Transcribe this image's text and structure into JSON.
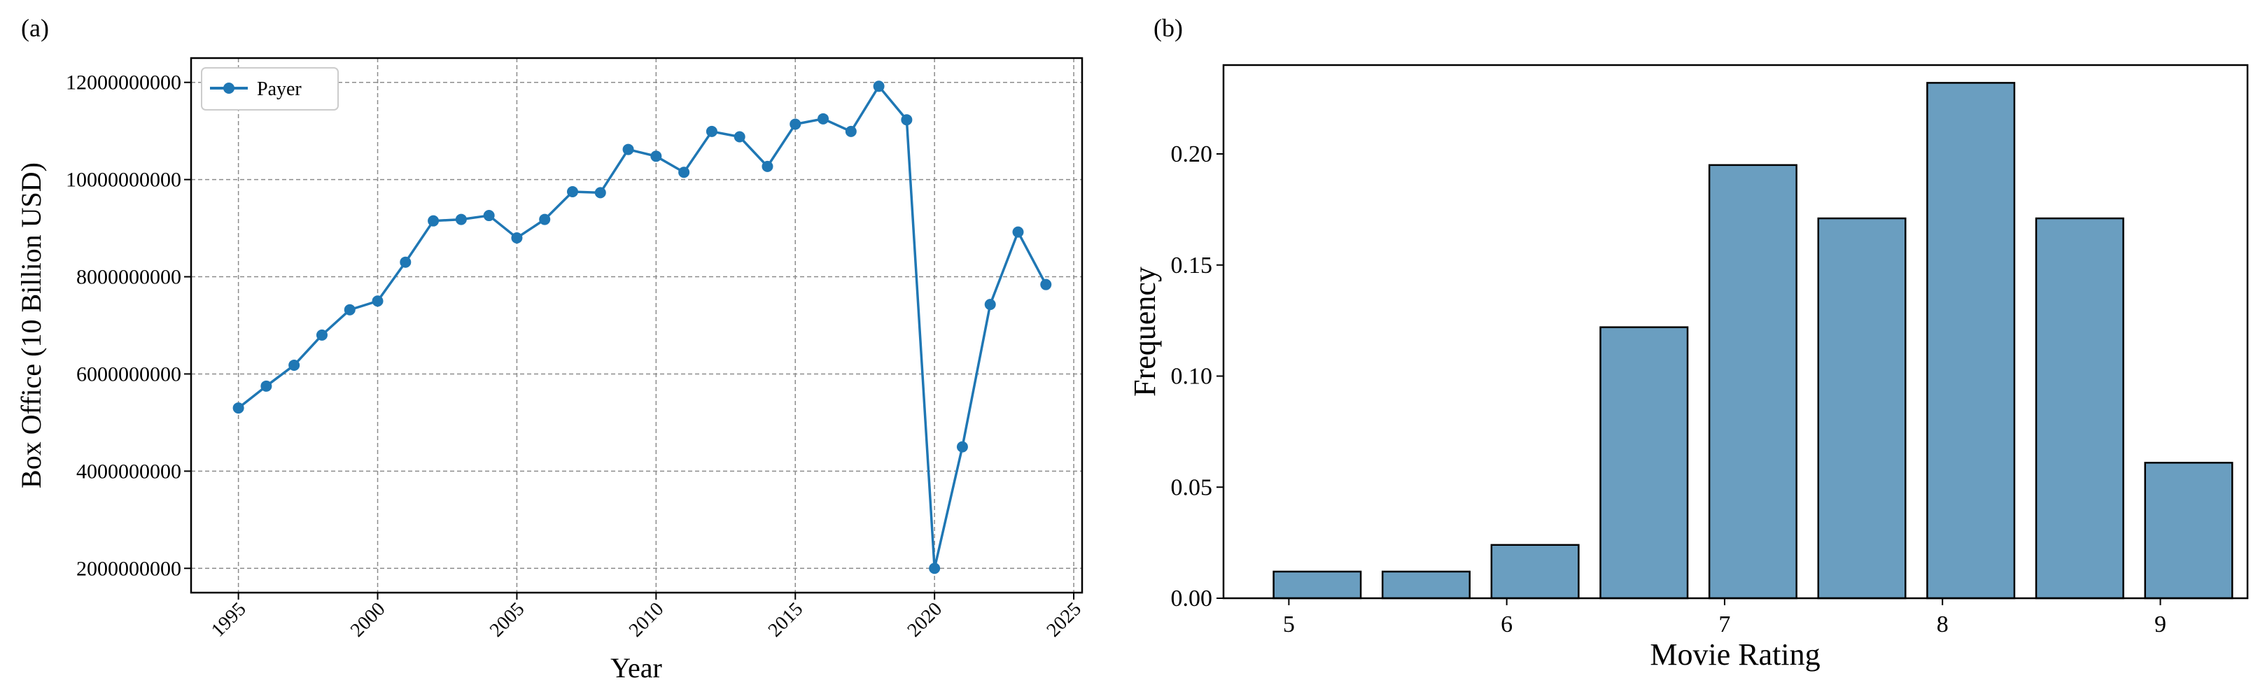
{
  "chart_data": [
    {
      "type": "line",
      "panel_label": "(a)",
      "xlabel": "Year",
      "ylabel": "Box Office (10 Billion USD)",
      "xlim": [
        1993.3,
        2025.3
      ],
      "ylim": [
        1500000000,
        12500000000
      ],
      "grid": true,
      "grid_style": "dashed",
      "legend_position": "upper-left",
      "x_ticks": [
        "1995",
        "2000",
        "2005",
        "2010",
        "2015",
        "2020",
        "2025"
      ],
      "y_ticks": [
        "2000000000",
        "4000000000",
        "6000000000",
        "8000000000",
        "10000000000",
        "12000000000"
      ],
      "x": [
        1995,
        1996,
        1997,
        1998,
        1999,
        2000,
        2001,
        2002,
        2003,
        2004,
        2005,
        2006,
        2007,
        2008,
        2009,
        2010,
        2011,
        2012,
        2013,
        2014,
        2015,
        2016,
        2017,
        2018,
        2019,
        2020,
        2021,
        2022,
        2023,
        2024
      ],
      "series": [
        {
          "name": "Payer",
          "color": "#1f77b4",
          "values": [
            5300000000,
            5750000000,
            6180000000,
            6800000000,
            7320000000,
            7500000000,
            8300000000,
            9150000000,
            9180000000,
            9260000000,
            8800000000,
            9180000000,
            9750000000,
            9730000000,
            10620000000,
            10480000000,
            10150000000,
            10990000000,
            10880000000,
            10270000000,
            11140000000,
            11250000000,
            10990000000,
            11920000000,
            11230000000,
            2000000000,
            4500000000,
            7430000000,
            8920000000,
            7840000000
          ]
        }
      ]
    },
    {
      "type": "bar",
      "panel_label": "(b)",
      "xlabel": "Movie Rating",
      "ylabel": "Frequency",
      "xlim": [
        4.7,
        9.4
      ],
      "ylim": [
        0,
        0.24
      ],
      "grid": false,
      "bar_color": "#6a9ec0",
      "x_ticks": [
        "5",
        "6",
        "7",
        "8",
        "9"
      ],
      "y_ticks": [
        "0.00",
        "0.05",
        "0.10",
        "0.15",
        "0.20"
      ],
      "bins": [
        [
          4.93,
          5.33
        ],
        [
          5.43,
          5.83
        ],
        [
          5.93,
          6.33
        ],
        [
          6.43,
          6.83
        ],
        [
          6.93,
          7.33
        ],
        [
          7.43,
          7.83
        ],
        [
          7.93,
          8.33
        ],
        [
          8.43,
          8.83
        ],
        [
          8.93,
          9.33
        ]
      ],
      "values": [
        0.012,
        0.012,
        0.024,
        0.122,
        0.195,
        0.171,
        0.232,
        0.171,
        0.061
      ]
    }
  ]
}
